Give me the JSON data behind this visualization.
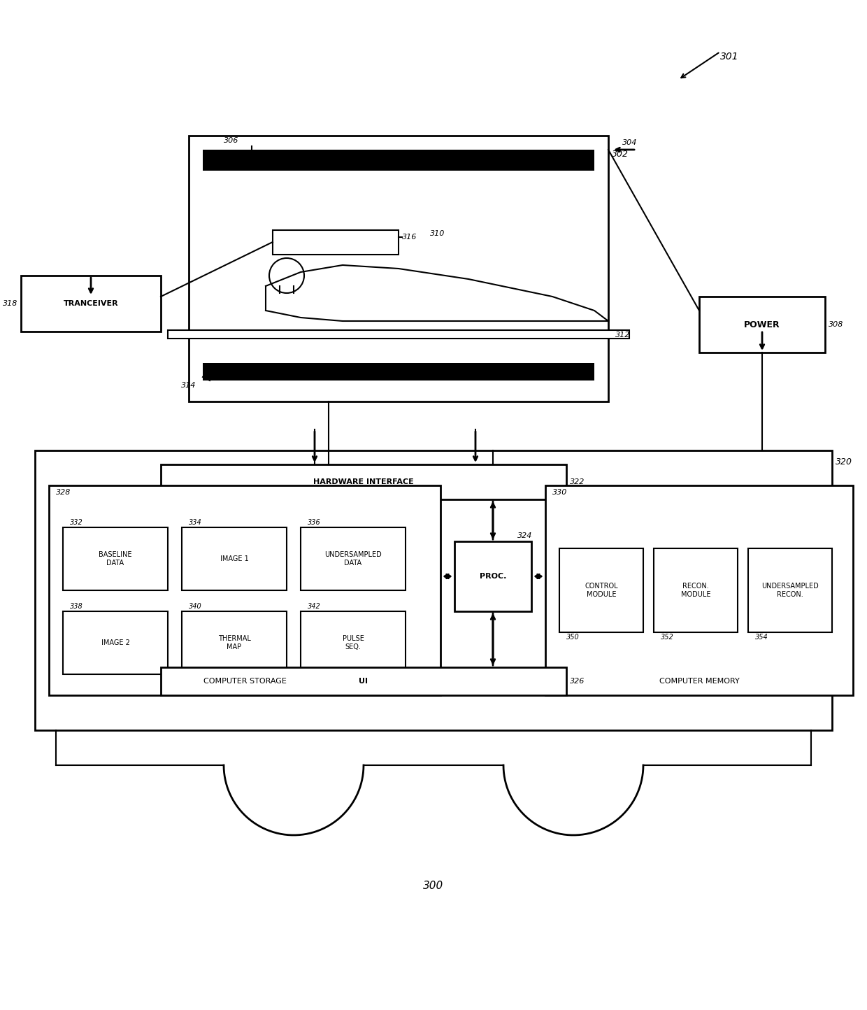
{
  "fig_width": 12.4,
  "fig_height": 14.44,
  "bg_color": "#ffffff",
  "line_color": "#000000",
  "label_301": "301",
  "label_300": "300",
  "label_302": "302",
  "label_304": "304",
  "label_306": "306",
  "label_308": "308",
  "label_310": "310",
  "label_312": "312",
  "label_314": "314",
  "label_316": "316",
  "label_318": "318",
  "label_320": "320",
  "label_322": "322",
  "label_324": "324",
  "label_326": "326",
  "label_328": "328",
  "label_330": "330",
  "label_332": "332",
  "label_334": "334",
  "label_336": "336",
  "label_338": "338",
  "label_340": "340",
  "label_342": "342",
  "label_350": "350",
  "label_352": "352",
  "label_354": "354",
  "text_tranceiver": "TRANCEIVER",
  "text_power": "POWER",
  "text_hardware_interface": "HARDWARE INTERFACE",
  "text_proc": "PROC.",
  "text_ui": "UI",
  "text_computer_storage": "COMPUTER STORAGE",
  "text_computer_memory": "COMPUTER MEMORY",
  "text_baseline_data": "BASELINE\nDATA",
  "text_image1": "IMAGE 1",
  "text_undersampled_data": "UNDERSAMPLED\nDATA",
  "text_image2": "IMAGE 2",
  "text_thermal_map": "THERMAL\nMAP",
  "text_pulse_seq": "PULSE\nSEQ.",
  "text_control_module": "CONTROL\nMODULE",
  "text_recon_module": "RECON.\nMODULE",
  "text_undersampled_recon": "UNDERSAMPLED\nRECON."
}
